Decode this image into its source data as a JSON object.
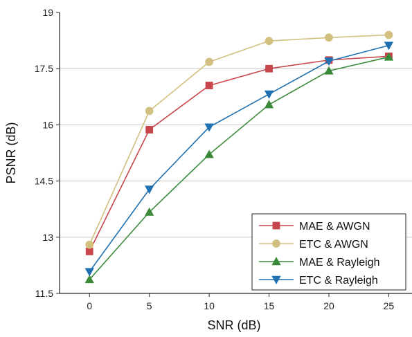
{
  "chart_data": {
    "type": "line",
    "title": "",
    "xlabel": "SNR (dB)",
    "ylabel": "PSNR (dB)",
    "x": [
      0,
      5,
      10,
      15,
      20,
      25
    ],
    "xticks": [
      "0",
      "5",
      "10",
      "15",
      "20",
      "25"
    ],
    "yticks": [
      "11.5",
      "13",
      "14.5",
      "16",
      "17.5",
      "19"
    ],
    "xlim": [
      -2.5,
      27
    ],
    "ylim": [
      11.5,
      19
    ],
    "grid": "horizontal",
    "legend_position": "bottom-right",
    "series": [
      {
        "name": "MAE & AWGN",
        "color": "#c8464b",
        "marker": "square",
        "values": [
          12.62,
          15.87,
          17.05,
          17.5,
          17.73,
          17.83
        ]
      },
      {
        "name": "ETC & AWGN",
        "color": "#d1c07f",
        "marker": "circle",
        "values": [
          12.8,
          16.37,
          17.68,
          18.24,
          18.33,
          18.4
        ]
      },
      {
        "name": "MAE & Rayleigh",
        "color": "#3a8a3a",
        "marker": "triangle-up",
        "values": [
          11.87,
          13.67,
          15.21,
          16.54,
          17.44,
          17.81
        ]
      },
      {
        "name": "ETC & Rayleigh",
        "color": "#1f70b0",
        "marker": "triangle-down",
        "values": [
          12.08,
          14.28,
          15.94,
          16.82,
          17.7,
          18.12
        ]
      }
    ]
  }
}
